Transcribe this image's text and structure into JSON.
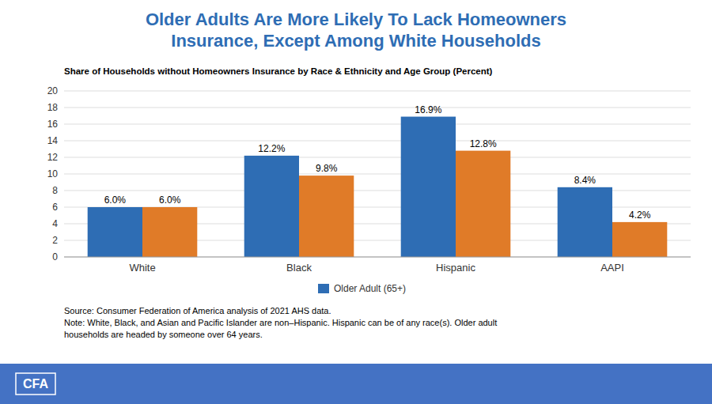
{
  "chart_data": {
    "type": "bar",
    "title": "Older Adults Are More Likely To Lack Homeowners\nInsurance, Except Among White Households",
    "subtitle": "Share of Households without Homeowners Insurance by Race & Ethnicity and Age Group (Percent)",
    "categories": [
      "White",
      "Black",
      "Hispanic",
      "AAPI"
    ],
    "series": [
      {
        "name": "Older Adult (65+)",
        "color": "#2E6DB4",
        "values": [
          6.0,
          12.2,
          16.9,
          8.4
        ],
        "value_labels": [
          "6.0%",
          "12.2%",
          "16.9%",
          "8.4%"
        ]
      },
      {
        "color": "#E07B28",
        "values": [
          6.0,
          9.8,
          12.8,
          4.2
        ],
        "value_labels": [
          "6.0%",
          "9.8%",
          "12.8%",
          "4.2%"
        ]
      }
    ],
    "ylim": [
      0,
      20
    ],
    "yticks": [
      0,
      2,
      4,
      6,
      8,
      10,
      12,
      14,
      16,
      18,
      20
    ],
    "grid": true,
    "legend": "bottom",
    "data_labels": true,
    "annotations": [
      "Source: Consumer Federation of America analysis of 2021 AHS data.\nNote: White, Black, and Asian and Pacific Islander are non–Hispanic. Hispanic can be of any race(s). Older adult\nhouseholds are headed by someone over 64 years.",
      "CFA"
    ]
  }
}
